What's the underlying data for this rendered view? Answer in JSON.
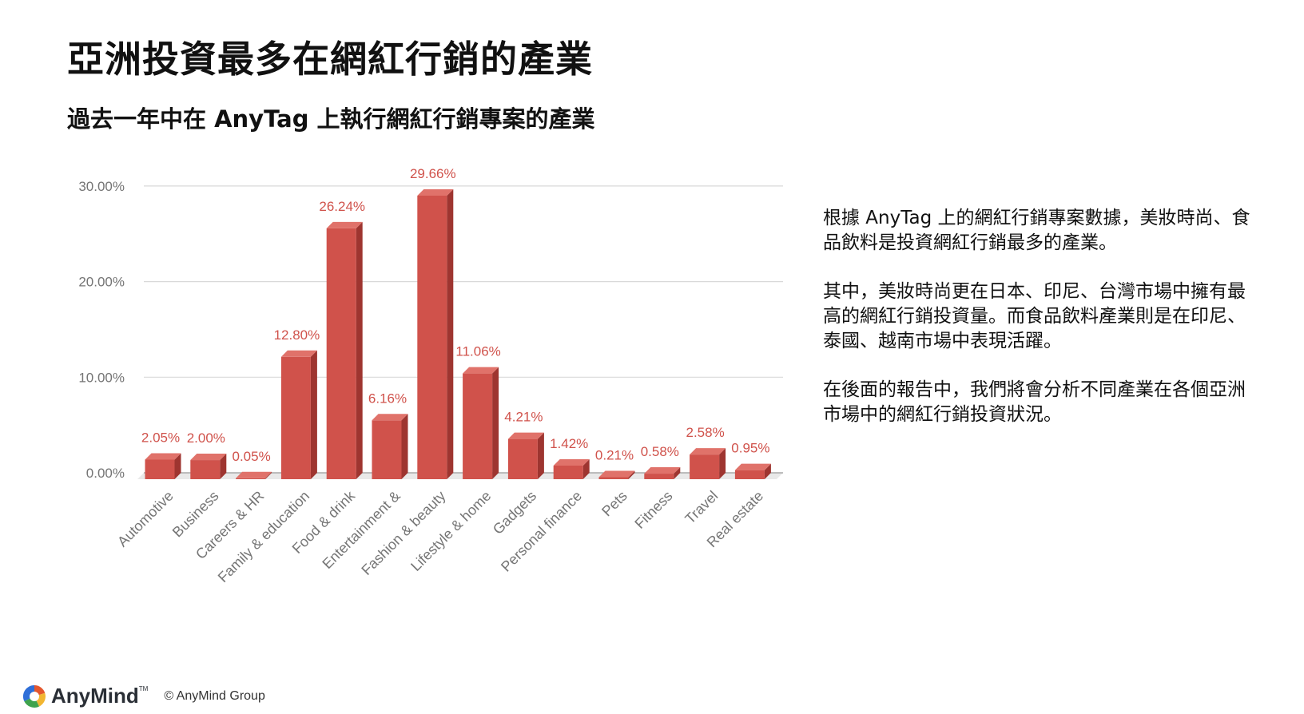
{
  "header": {
    "title": "亞洲投資最多在網紅行銷的產業",
    "subtitle": "過去一年中在 AnyTag 上執行網紅行銷專案的產業"
  },
  "commentary": {
    "paragraphs": [
      "根據 AnyTag 上的網紅行銷專案數據，美妝時尚、食品飲料是投資網紅行銷最多的產業。",
      "其中，美妝時尚更在日本、印尼、台灣市場中擁有最高的網紅行銷投資量。而食品飲料產業則是在印尼、泰國、越南市場中表現活躍。",
      "在後面的報告中，我們將會分析不同產業在各個亞洲市場中的網紅行銷投資狀況。"
    ]
  },
  "footer": {
    "logo_text": "AnyMind",
    "logo_tm": "TM",
    "copyright": "© AnyMind Group"
  },
  "colors": {
    "bar_front": "#d0524b",
    "bar_top": "#e0726a",
    "bar_side": "#9e3530",
    "data_label": "#d0524b",
    "tick_label": "#757575",
    "gridline": "#d9d9d9"
  },
  "chart_data": {
    "type": "bar",
    "style": "3d",
    "categories": [
      "Automotive",
      "Business",
      "Careers & HR",
      "Family & education",
      "Food & drink",
      "Entertainment &",
      "Fashion & beauty",
      "Lifestyle & home",
      "Gadgets",
      "Personal finance",
      "Pets",
      "Fitness",
      "Travel",
      "Real estate"
    ],
    "values": [
      2.05,
      2.0,
      0.05,
      12.8,
      26.24,
      6.16,
      29.66,
      11.06,
      4.21,
      1.42,
      0.21,
      0.58,
      2.58,
      0.95
    ],
    "data_labels": [
      "2.05%",
      "2.00%",
      "0.05%",
      "12.80%",
      "26.24%",
      "6.16%",
      "29.66%",
      "11.06%",
      "4.21%",
      "1.42%",
      "0.21%",
      "0.58%",
      "2.58%",
      "0.95%"
    ],
    "y_ticks": [
      "0.00%",
      "10.00%",
      "20.00%",
      "30.00%"
    ],
    "ylim": [
      0,
      30
    ],
    "grid": true,
    "legend": "none"
  }
}
